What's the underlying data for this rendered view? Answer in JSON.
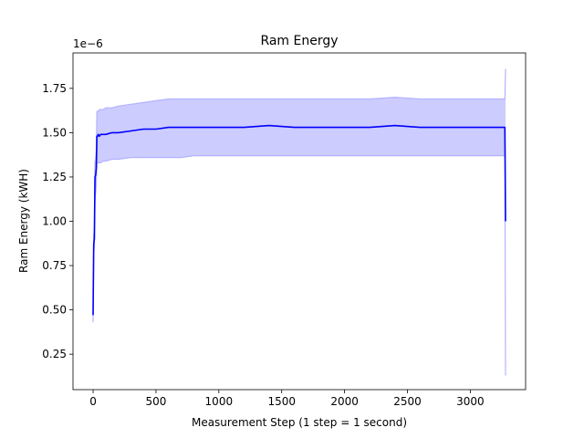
{
  "chart_data": {
    "type": "line",
    "title": "Ram Energy",
    "xlabel": "Measurement Step (1 step = 1 second)",
    "ylabel": "Ram Energy (kWH)",
    "offset_text": "1e−6",
    "xlim": [
      -160,
      3440
    ],
    "ylim": [
      0.05,
      1.95
    ],
    "xticks": [
      0,
      500,
      1000,
      1500,
      2000,
      2500,
      3000
    ],
    "xtick_labels": [
      "0",
      "500",
      "1000",
      "1500",
      "2000",
      "2500",
      "3000"
    ],
    "yticks": [
      0.25,
      0.5,
      0.75,
      1.0,
      1.25,
      1.5,
      1.75
    ],
    "ytick_labels": [
      "0.25",
      "0.50",
      "0.75",
      "1.00",
      "1.25",
      "1.50",
      "1.75"
    ],
    "grid": false,
    "legend": null,
    "colors": {
      "line": "#0000ff",
      "band_fill": "#ccccff",
      "band_edge": "#b3b3ff"
    },
    "series": [
      {
        "role": "mean",
        "x": [
          0,
          5,
          10,
          15,
          20,
          25,
          30,
          35,
          40,
          50,
          60,
          80,
          100,
          150,
          200,
          300,
          400,
          500,
          600,
          700,
          800,
          1000,
          1200,
          1400,
          1600,
          1800,
          2000,
          2200,
          2400,
          2600,
          2800,
          3000,
          3200,
          3270,
          3275,
          3280
        ],
        "y": [
          0.47,
          0.87,
          0.9,
          1.25,
          1.26,
          1.3,
          1.48,
          1.48,
          1.49,
          1.48,
          1.49,
          1.49,
          1.49,
          1.5,
          1.5,
          1.51,
          1.52,
          1.52,
          1.53,
          1.53,
          1.53,
          1.53,
          1.53,
          1.54,
          1.53,
          1.53,
          1.53,
          1.53,
          1.54,
          1.53,
          1.53,
          1.53,
          1.53,
          1.53,
          1.53,
          1.0
        ]
      },
      {
        "role": "upper_band",
        "x": [
          0,
          5,
          10,
          15,
          20,
          25,
          30,
          35,
          40,
          50,
          60,
          80,
          100,
          150,
          200,
          300,
          400,
          500,
          600,
          700,
          800,
          1000,
          1200,
          1400,
          1600,
          1800,
          2000,
          2200,
          2400,
          2600,
          2800,
          3000,
          3200,
          3270,
          3275,
          3280
        ],
        "y": [
          0.5,
          0.92,
          0.95,
          1.33,
          1.35,
          1.4,
          1.62,
          1.62,
          1.62,
          1.63,
          1.63,
          1.63,
          1.64,
          1.64,
          1.65,
          1.66,
          1.67,
          1.68,
          1.69,
          1.69,
          1.69,
          1.69,
          1.69,
          1.69,
          1.69,
          1.69,
          1.69,
          1.69,
          1.7,
          1.69,
          1.69,
          1.69,
          1.69,
          1.69,
          1.69,
          1.86
        ]
      },
      {
        "role": "lower_band",
        "x": [
          0,
          5,
          10,
          15,
          20,
          25,
          30,
          35,
          40,
          50,
          60,
          80,
          100,
          150,
          200,
          300,
          400,
          500,
          600,
          700,
          800,
          1000,
          1200,
          1400,
          1600,
          1800,
          2000,
          2200,
          2400,
          2600,
          2800,
          3000,
          3200,
          3270,
          3275,
          3280
        ],
        "y": [
          0.43,
          0.82,
          0.86,
          1.12,
          1.16,
          1.2,
          1.33,
          1.33,
          1.33,
          1.33,
          1.33,
          1.34,
          1.34,
          1.35,
          1.35,
          1.36,
          1.36,
          1.36,
          1.36,
          1.36,
          1.37,
          1.37,
          1.37,
          1.37,
          1.37,
          1.37,
          1.37,
          1.37,
          1.37,
          1.37,
          1.37,
          1.37,
          1.37,
          1.37,
          1.37,
          0.13
        ]
      }
    ]
  }
}
